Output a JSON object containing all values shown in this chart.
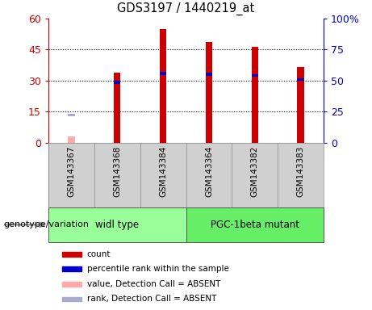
{
  "title": "GDS3197 / 1440219_at",
  "samples": [
    "GSM143367",
    "GSM143368",
    "GSM143384",
    "GSM143364",
    "GSM143382",
    "GSM143383"
  ],
  "count_values": [
    null,
    34.0,
    55.0,
    48.5,
    46.5,
    36.5
  ],
  "count_absent_value": 2.8,
  "count_absent_index": 0,
  "percentile_values": [
    null,
    29.0,
    33.5,
    33.0,
    32.5,
    30.5
  ],
  "percentile_absent_value": 13.5,
  "percentile_absent_index": 0,
  "ylim_left": [
    0,
    60
  ],
  "ylim_right": [
    0,
    100
  ],
  "yticks_left": [
    0,
    15,
    30,
    45,
    60
  ],
  "yticks_right": [
    0,
    25,
    50,
    75,
    100
  ],
  "ylabel_left_color": "#cc0000",
  "ylabel_right_color": "#0000cc",
  "group_row_color": "#d0d0d0",
  "bar_color_red": "#cc0000",
  "bar_color_blue": "#0000cc",
  "absent_bar_color": "#ffaaaa",
  "absent_rank_color": "#aaaacc",
  "plot_bg_color": "#ffffff",
  "legend_items": [
    {
      "color": "#cc0000",
      "label": "count"
    },
    {
      "color": "#0000cc",
      "label": "percentile rank within the sample"
    },
    {
      "color": "#ffaaaa",
      "label": "value, Detection Call = ABSENT"
    },
    {
      "color": "#aaaacc",
      "label": "rank, Detection Call = ABSENT"
    }
  ],
  "genotype_label": "genotype/variation",
  "group1_label": "widl type",
  "group2_label": "PGC-1beta mutant",
  "group1_color": "#99ff99",
  "group2_color": "#66ee66"
}
